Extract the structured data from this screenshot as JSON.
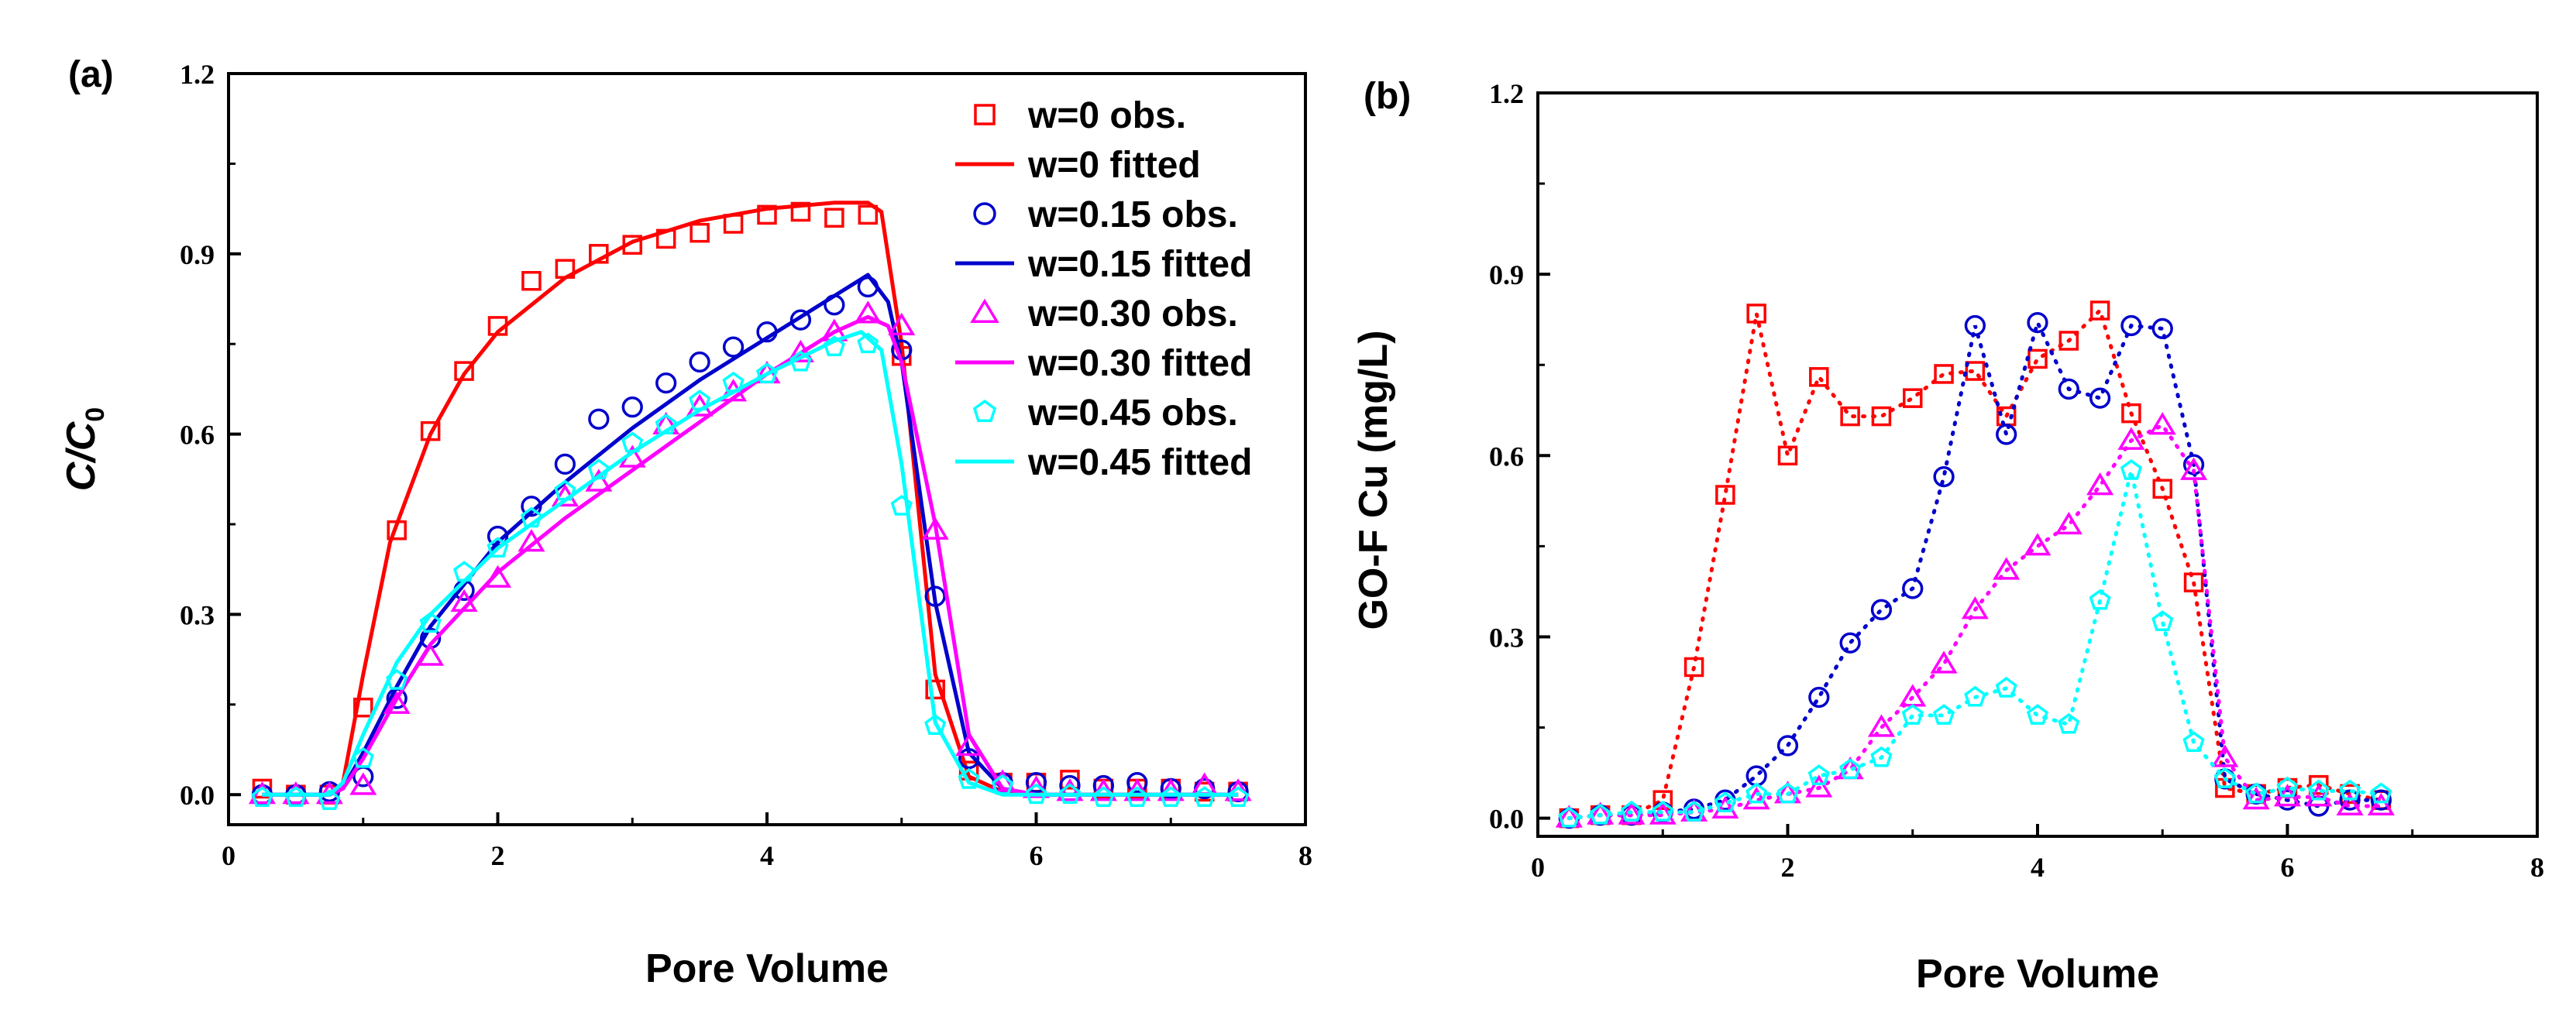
{
  "chart_data": [
    {
      "id": "a",
      "type": "line",
      "panel_label": "(a)",
      "title": "",
      "xlabel": "Pore Volume",
      "ylabel_main": "C/C",
      "ylabel_sub": "0",
      "xlim": [
        0,
        8
      ],
      "ylim": [
        -0.05,
        1.2
      ],
      "xticks": [
        0,
        2,
        4,
        6,
        8
      ],
      "yticks": [
        0.0,
        0.3,
        0.6,
        0.9,
        1.2
      ],
      "xtick_labels": [
        "0",
        "2",
        "4",
        "6",
        "8"
      ],
      "ytick_labels": [
        "0.0",
        "0.3",
        "0.6",
        "0.9",
        "1.2"
      ],
      "grid": false,
      "legend_position": "top-right",
      "series": [
        {
          "name": "w=0 obs.",
          "kind": "markers",
          "marker": "square",
          "color": "#ff0000",
          "x": [
            0.25,
            0.5,
            0.75,
            1.0,
            1.25,
            1.5,
            1.75,
            2.0,
            2.25,
            2.5,
            2.75,
            3.0,
            3.25,
            3.5,
            3.75,
            4.0,
            4.25,
            4.5,
            4.75,
            5.0,
            5.25,
            5.5,
            5.75,
            6.0,
            6.25,
            6.5,
            6.75,
            7.0,
            7.25,
            7.5
          ],
          "y": [
            0.01,
            0.0,
            0.0,
            0.145,
            0.44,
            0.605,
            0.705,
            0.78,
            0.855,
            0.875,
            0.9,
            0.915,
            0.925,
            0.935,
            0.95,
            0.965,
            0.97,
            0.96,
            0.965,
            0.73,
            0.175,
            0.04,
            0.02,
            0.02,
            0.025,
            0.01,
            0.01,
            0.01,
            0.005,
            0.005
          ]
        },
        {
          "name": "w=0 fitted",
          "kind": "line",
          "color": "#ff0000",
          "x": [
            0.25,
            0.5,
            0.75,
            0.85,
            1.0,
            1.2,
            1.5,
            1.75,
            2.0,
            2.5,
            3.0,
            3.5,
            4.0,
            4.5,
            4.75,
            4.85,
            5.0,
            5.25,
            5.5,
            5.75,
            6.0,
            7.5
          ],
          "y": [
            0.0,
            0.0,
            0.0,
            0.02,
            0.2,
            0.42,
            0.6,
            0.7,
            0.77,
            0.86,
            0.92,
            0.955,
            0.975,
            0.985,
            0.985,
            0.97,
            0.75,
            0.2,
            0.03,
            0.005,
            0.0,
            0.0
          ]
        },
        {
          "name": "w=0.15 obs.",
          "kind": "markers",
          "marker": "circle",
          "color": "#0000cc",
          "x": [
            0.25,
            0.5,
            0.75,
            1.0,
            1.25,
            1.5,
            1.75,
            2.0,
            2.25,
            2.5,
            2.75,
            3.0,
            3.25,
            3.5,
            3.75,
            4.0,
            4.25,
            4.5,
            4.75,
            5.0,
            5.25,
            5.5,
            5.75,
            6.0,
            6.25,
            6.5,
            6.75,
            7.0,
            7.25,
            7.5
          ],
          "y": [
            0.0,
            0.0,
            0.005,
            0.03,
            0.16,
            0.26,
            0.34,
            0.43,
            0.48,
            0.55,
            0.625,
            0.645,
            0.685,
            0.72,
            0.745,
            0.77,
            0.79,
            0.815,
            0.845,
            0.74,
            0.33,
            0.06,
            0.02,
            0.02,
            0.015,
            0.015,
            0.02,
            0.01,
            0.01,
            0.005
          ]
        },
        {
          "name": "w=0.15 fitted",
          "kind": "line",
          "color": "#0000cc",
          "x": [
            0.25,
            0.5,
            0.75,
            0.85,
            1.0,
            1.25,
            1.5,
            2.0,
            2.5,
            3.0,
            3.5,
            4.0,
            4.5,
            4.75,
            4.9,
            5.0,
            5.25,
            5.5,
            5.75,
            6.0,
            7.5
          ],
          "y": [
            0.0,
            0.0,
            0.0,
            0.01,
            0.07,
            0.18,
            0.28,
            0.42,
            0.52,
            0.61,
            0.69,
            0.76,
            0.83,
            0.865,
            0.82,
            0.72,
            0.32,
            0.07,
            0.01,
            0.0,
            0.0
          ]
        },
        {
          "name": "w=0.30 obs.",
          "kind": "markers",
          "marker": "triangle",
          "color": "#ff00ff",
          "x": [
            0.25,
            0.5,
            0.75,
            1.0,
            1.25,
            1.5,
            1.75,
            2.0,
            2.25,
            2.5,
            2.75,
            3.0,
            3.25,
            3.5,
            3.75,
            4.0,
            4.25,
            4.5,
            4.75,
            5.0,
            5.25,
            5.5,
            5.75,
            6.0,
            6.25,
            6.5,
            6.75,
            7.0,
            7.25,
            7.5
          ],
          "y": [
            0.0,
            0.0,
            0.0,
            0.015,
            0.15,
            0.23,
            0.32,
            0.36,
            0.42,
            0.495,
            0.52,
            0.56,
            0.615,
            0.645,
            0.67,
            0.7,
            0.735,
            0.77,
            0.8,
            0.78,
            0.44,
            0.08,
            0.02,
            0.01,
            0.005,
            0.005,
            0.005,
            0.005,
            0.015,
            0.005
          ]
        },
        {
          "name": "w=0.30 fitted",
          "kind": "line",
          "color": "#ff00ff",
          "x": [
            0.25,
            0.5,
            0.75,
            0.85,
            1.0,
            1.25,
            1.5,
            2.0,
            2.5,
            3.0,
            3.5,
            4.0,
            4.5,
            4.75,
            4.9,
            5.0,
            5.25,
            5.5,
            5.75,
            6.0,
            7.5
          ],
          "y": [
            0.0,
            0.0,
            0.0,
            0.01,
            0.06,
            0.16,
            0.25,
            0.37,
            0.46,
            0.54,
            0.62,
            0.7,
            0.77,
            0.795,
            0.78,
            0.72,
            0.45,
            0.1,
            0.01,
            0.0,
            0.0
          ]
        },
        {
          "name": "w=0.45 obs.",
          "kind": "markers",
          "marker": "pentagon",
          "color": "#00ffff",
          "x": [
            0.25,
            0.5,
            0.75,
            1.0,
            1.25,
            1.5,
            1.75,
            2.0,
            2.25,
            2.5,
            2.75,
            3.0,
            3.25,
            3.5,
            3.75,
            4.0,
            4.25,
            4.5,
            4.75,
            5.0,
            5.25,
            5.5,
            5.75,
            6.0,
            6.25,
            6.5,
            6.75,
            7.0,
            7.25,
            7.5
          ],
          "y": [
            -0.005,
            -0.005,
            -0.01,
            0.06,
            0.19,
            0.285,
            0.37,
            0.41,
            0.46,
            0.505,
            0.54,
            0.585,
            0.615,
            0.655,
            0.685,
            0.7,
            0.72,
            0.745,
            0.75,
            0.48,
            0.115,
            0.025,
            0.015,
            0.0,
            0.0,
            -0.005,
            -0.005,
            -0.005,
            -0.005,
            -0.005
          ]
        },
        {
          "name": "w=0.45 fitted",
          "kind": "line",
          "color": "#00ffff",
          "x": [
            0.25,
            0.5,
            0.75,
            0.85,
            1.0,
            1.25,
            1.5,
            2.0,
            2.5,
            3.0,
            3.5,
            4.0,
            4.5,
            4.7,
            4.85,
            5.0,
            5.25,
            5.5,
            5.75,
            6.0,
            7.5
          ],
          "y": [
            0.0,
            0.0,
            0.0,
            0.02,
            0.1,
            0.22,
            0.3,
            0.41,
            0.49,
            0.57,
            0.64,
            0.7,
            0.755,
            0.77,
            0.74,
            0.55,
            0.12,
            0.02,
            0.0,
            0.0,
            0.0
          ]
        }
      ]
    },
    {
      "id": "b",
      "type": "line",
      "panel_label": "(b)",
      "title": "",
      "xlabel": "Pore Volume",
      "ylabel_main": "GO-F Cu (mg/L)",
      "xlim": [
        0,
        8
      ],
      "ylim": [
        -0.03,
        1.2
      ],
      "xticks": [
        0,
        2,
        4,
        6,
        8
      ],
      "yticks": [
        0.0,
        0.3,
        0.6,
        0.9,
        1.2
      ],
      "xtick_labels": [
        "0",
        "2",
        "4",
        "6",
        "8"
      ],
      "ytick_labels": [
        "0.0",
        "0.3",
        "0.6",
        "0.9",
        "1.2"
      ],
      "grid": false,
      "series": [
        {
          "marker": "square",
          "color": "#ff0000",
          "line": "dotted",
          "x": [
            0.25,
            0.5,
            0.75,
            1.0,
            1.25,
            1.5,
            1.75,
            2.0,
            2.25,
            2.5,
            2.75,
            3.0,
            3.25,
            3.5,
            3.75,
            4.0,
            4.25,
            4.5,
            4.75,
            5.0,
            5.25,
            5.5,
            5.75,
            6.0,
            6.25,
            6.5,
            6.75
          ],
          "y": [
            0.0,
            0.005,
            0.005,
            0.03,
            0.25,
            0.535,
            0.835,
            0.6,
            0.73,
            0.665,
            0.665,
            0.695,
            0.735,
            0.74,
            0.665,
            0.76,
            0.79,
            0.84,
            0.67,
            0.545,
            0.39,
            0.05,
            0.04,
            0.05,
            0.055,
            0.04,
            0.03
          ]
        },
        {
          "marker": "circle",
          "color": "#0000cc",
          "line": "dotted",
          "x": [
            0.25,
            0.5,
            0.75,
            1.0,
            1.25,
            1.5,
            1.75,
            2.0,
            2.25,
            2.5,
            2.75,
            3.0,
            3.25,
            3.5,
            3.75,
            4.0,
            4.25,
            4.5,
            4.75,
            5.0,
            5.25,
            5.5,
            5.75,
            6.0,
            6.25,
            6.5,
            6.75
          ],
          "y": [
            0.0,
            0.005,
            0.005,
            0.01,
            0.015,
            0.03,
            0.07,
            0.12,
            0.2,
            0.29,
            0.345,
            0.38,
            0.565,
            0.815,
            0.635,
            0.82,
            0.71,
            0.695,
            0.815,
            0.81,
            0.585,
            0.065,
            0.04,
            0.03,
            0.02,
            0.03,
            0.03
          ]
        },
        {
          "marker": "triangle",
          "color": "#ff00ff",
          "line": "dotted",
          "x": [
            0.25,
            0.5,
            0.75,
            1.0,
            1.25,
            1.5,
            1.75,
            2.0,
            2.25,
            2.5,
            2.75,
            3.0,
            3.25,
            3.5,
            3.75,
            4.0,
            4.25,
            4.5,
            4.75,
            5.0,
            5.25,
            5.5,
            5.75,
            6.0,
            6.25,
            6.5,
            6.75
          ],
          "y": [
            0.0,
            0.005,
            0.005,
            0.005,
            0.01,
            0.015,
            0.03,
            0.04,
            0.05,
            0.08,
            0.15,
            0.2,
            0.255,
            0.345,
            0.41,
            0.45,
            0.485,
            0.55,
            0.625,
            0.65,
            0.575,
            0.1,
            0.03,
            0.035,
            0.035,
            0.02,
            0.02
          ]
        },
        {
          "marker": "pentagon",
          "color": "#00ffff",
          "line": "dotted",
          "x": [
            0.25,
            0.5,
            0.75,
            1.0,
            1.25,
            1.5,
            1.75,
            2.0,
            2.25,
            2.5,
            2.75,
            3.0,
            3.25,
            3.5,
            3.75,
            4.0,
            4.25,
            4.5,
            4.75,
            5.0,
            5.25,
            5.5,
            5.75,
            6.0,
            6.25,
            6.5,
            6.75
          ],
          "y": [
            0.0,
            0.005,
            0.01,
            0.01,
            0.01,
            0.025,
            0.04,
            0.04,
            0.07,
            0.08,
            0.1,
            0.17,
            0.17,
            0.2,
            0.215,
            0.17,
            0.155,
            0.36,
            0.575,
            0.325,
            0.125,
            0.065,
            0.04,
            0.05,
            0.045,
            0.045,
            0.04
          ]
        }
      ]
    }
  ]
}
